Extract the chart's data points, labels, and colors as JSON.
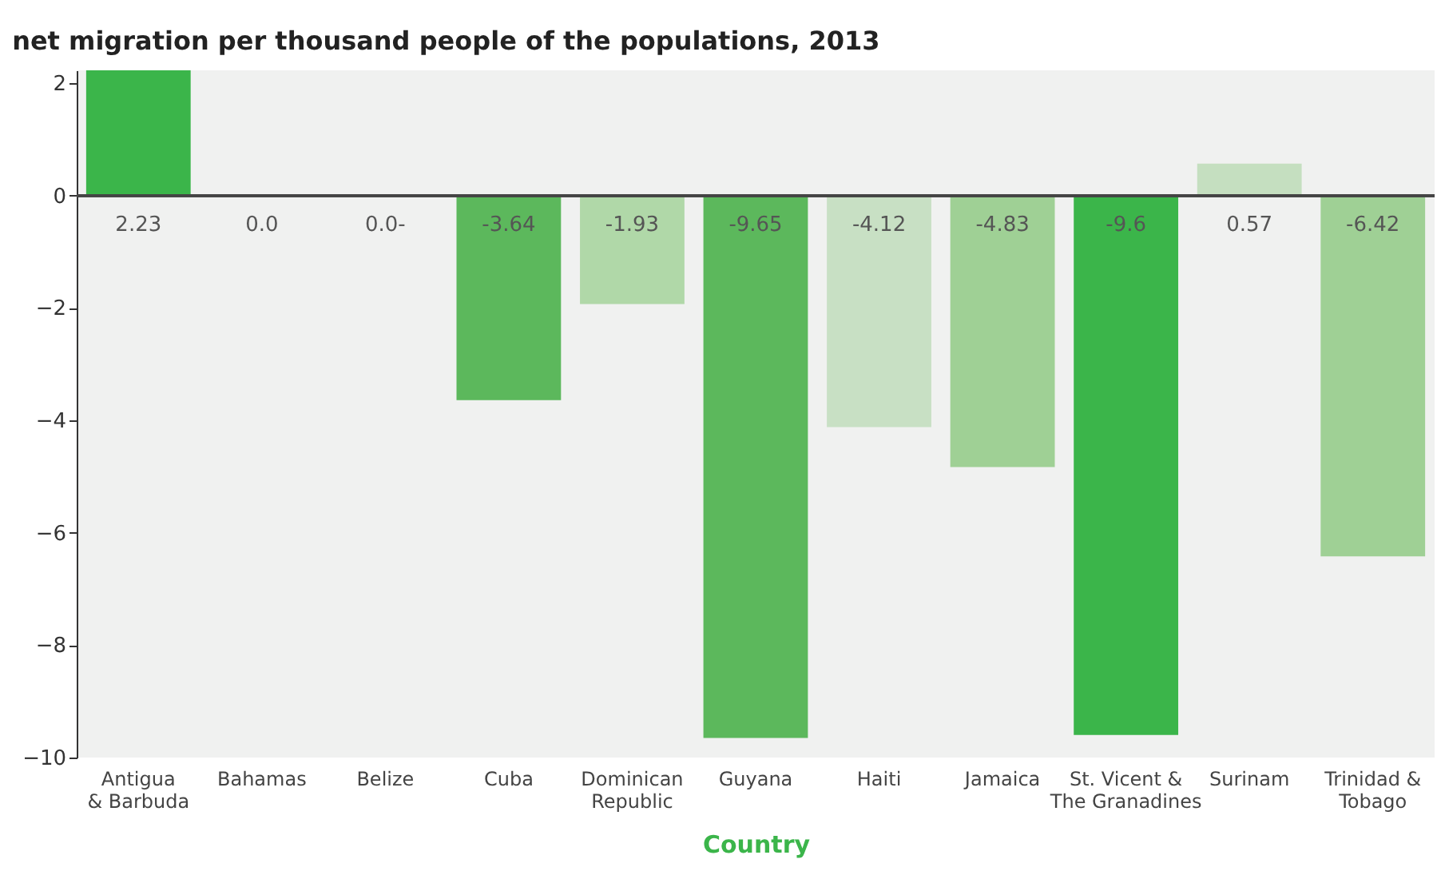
{
  "chart_data": {
    "type": "bar",
    "title": "net migration per thousand people of the populations, 2013",
    "xlabel": "Country",
    "categories": [
      "Antigua\n& Barbuda",
      "Bahamas",
      "Belize",
      "Cuba",
      "Dominican\nRepublic",
      "Guyana",
      "Haiti",
      "Jamaica",
      "St. Vicent &\nThe Granadines",
      "Surinam",
      "Trinidad &\nTobago"
    ],
    "values": [
      2.23,
      0.0,
      0.0,
      -3.64,
      -1.93,
      -9.65,
      -4.12,
      -4.83,
      -9.6,
      0.57,
      -6.42
    ],
    "value_labels": [
      "2.23",
      "0.0",
      "0.0-",
      "-3.64",
      "-1.93",
      "-9.65",
      "-4.12",
      "-4.83",
      "-9.6",
      "0.57",
      "-6.42"
    ],
    "colors": [
      "#3bb54a",
      "#3bb54a",
      "#3bb54a",
      "#5cb85c",
      "#b0d8a8",
      "#5cb85c",
      "#c8e0c4",
      "#9fd095",
      "#3bb54a",
      "#c5dfc0",
      "#9fd095"
    ],
    "ylim": [
      -10,
      2.23
    ],
    "yticks": [
      -10,
      -8,
      -6,
      -4,
      -2,
      0,
      2
    ]
  }
}
